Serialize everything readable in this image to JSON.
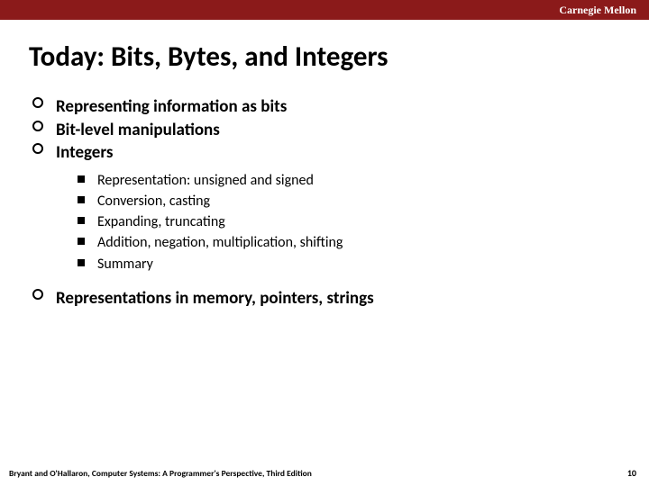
{
  "header": {
    "label": "Carnegie Mellon",
    "bar_color": "#8b1a1a",
    "text_color": "#ffffff"
  },
  "title": "Today: Bits, Bytes, and Integers",
  "outline": {
    "items": [
      {
        "label": "Representing information as bits"
      },
      {
        "label": "Bit-level manipulations"
      },
      {
        "label": "Integers",
        "sub": [
          "Representation: unsigned and signed",
          "Conversion, casting",
          "Expanding, truncating",
          "Addition, negation, multiplication, shifting",
          "Summary"
        ]
      },
      {
        "label": "Representations in memory, pointers, strings"
      }
    ]
  },
  "footer": {
    "left": "Bryant and O'Hallaron, Computer Systems: A Programmer's Perspective, Third Edition",
    "page": "10"
  },
  "style": {
    "background": "#ffffff",
    "title_fontsize": 31,
    "bullet_fontsize": 19,
    "sub_fontsize": 16,
    "open_marker_border": "#000000",
    "square_marker_fill": "#000000"
  }
}
